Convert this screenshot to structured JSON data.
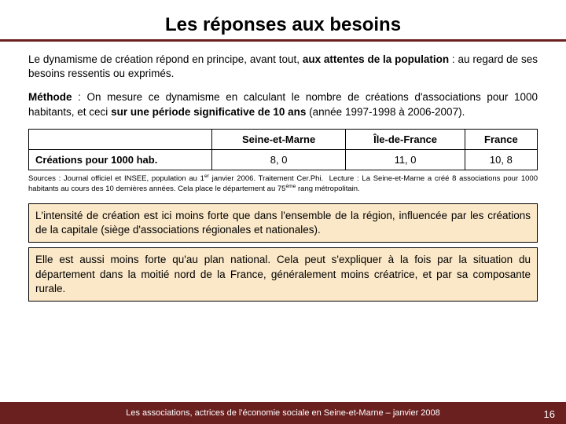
{
  "title": {
    "text": "Les réponses aux besoins",
    "color": "#000",
    "fontsize_pt": 24
  },
  "underline_color": "#6b2020",
  "page_bg": "#ffffff",
  "paragraph1_html": "Le dynamisme de création répond en principe, avant tout, <b>aux attentes de la population</b> : au regard de ses besoins ressentis ou exprimés.",
  "paragraph2_html": "<b>Méthode</b> : On mesure ce dynamisme en calculant le nombre de créations d'associations pour 1000 habitants, et ceci <b>sur une période significative de 10 ans</b> (année 1997-1998 à 2006-2007).",
  "table": {
    "type": "table",
    "columns": [
      "",
      "Seine-et-Marne",
      "Île-de-France",
      "France"
    ],
    "rows": [
      {
        "label": "Créations pour 1000 hab.",
        "values": [
          "8, 0",
          "11, 0",
          "10, 8"
        ]
      }
    ],
    "border_color": "#000000",
    "header_fontweight": "bold",
    "cell_fontsize_pt": 13
  },
  "sources_html": "Sources : Journal officiel et INSEE, population au 1<sup>er</sup> janvier 2006. Traitement Cer.Phi.&nbsp;&nbsp;Lecture : La Seine-et-Marne a créé 8 associations pour 1000 habitants au cours des 10 dernières années. Cela place le département au 75<sup>ème</sup> rang métropolitain.",
  "callout1": "L'intensité de création est ici moins forte que dans l'ensemble de la région, influencée par les créations de la capitale (siège d'associations régionales et nationales).",
  "callout2": "Elle est aussi moins forte qu'au plan national. Cela peut s'expliquer à la fois par la situation du département dans la moitié nord de la France, généralement moins créatrice, et par sa composante rurale.",
  "callout_bg": "#fbe8c8",
  "footer": {
    "text": "Les associations, actrices de l'économie sociale en Seine-et-Marne – janvier 2008",
    "bg": "#6b2020",
    "color": "#ffffff",
    "page_number": "16"
  }
}
